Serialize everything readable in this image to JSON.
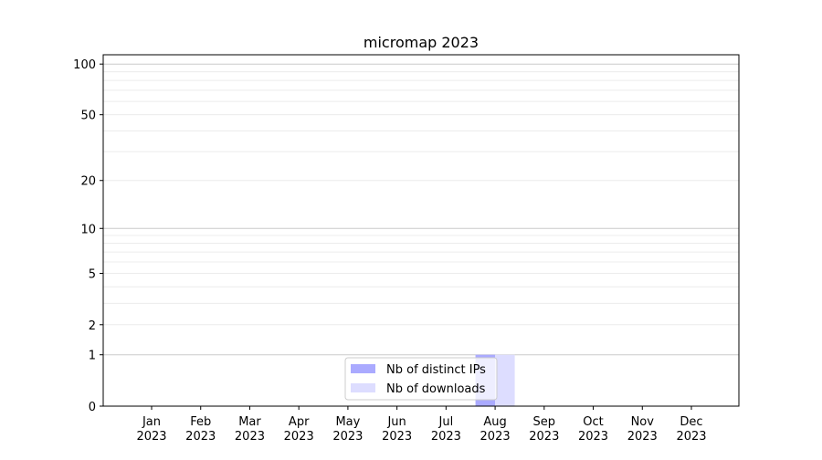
{
  "chart_data": {
    "type": "bar",
    "title": "micromap 2023",
    "xlabel": "",
    "ylabel": "",
    "y_scale": "log(1+y)",
    "ylim": [
      0,
      114
    ],
    "yticks": [
      0,
      1,
      2,
      5,
      10,
      20,
      50,
      100
    ],
    "ytick_labels": [
      "0",
      "1",
      "2",
      "5",
      "10",
      "20",
      "50",
      "100"
    ],
    "grid": {
      "major": [
        1,
        10,
        100
      ],
      "minor": [
        2,
        3,
        4,
        5,
        6,
        7,
        8,
        9,
        20,
        30,
        40,
        50,
        60,
        70,
        80,
        90
      ]
    },
    "categories": [
      "Jan\n2023",
      "Feb\n2023",
      "Mar\n2023",
      "Apr\n2023",
      "May\n2023",
      "Jun\n2023",
      "Jul\n2023",
      "Aug\n2023",
      "Sep\n2023",
      "Oct\n2023",
      "Nov\n2023",
      "Dec\n2023"
    ],
    "category_lines": [
      [
        "Jan",
        "2023"
      ],
      [
        "Feb",
        "2023"
      ],
      [
        "Mar",
        "2023"
      ],
      [
        "Apr",
        "2023"
      ],
      [
        "May",
        "2023"
      ],
      [
        "Jun",
        "2023"
      ],
      [
        "Jul",
        "2023"
      ],
      [
        "Aug",
        "2023"
      ],
      [
        "Sep",
        "2023"
      ],
      [
        "Oct",
        "2023"
      ],
      [
        "Nov",
        "2023"
      ],
      [
        "Dec",
        "2023"
      ]
    ],
    "series": [
      {
        "name": "Nb of distinct IPs",
        "color": "#aaaaff",
        "values": [
          0,
          0,
          0,
          0,
          0,
          0,
          0,
          1,
          0,
          0,
          0,
          0
        ]
      },
      {
        "name": "Nb of downloads",
        "color": "#ddddff",
        "values": [
          0,
          0,
          0,
          0,
          0,
          0,
          0,
          1,
          0,
          0,
          0,
          0
        ]
      }
    ],
    "legend_position": "lower-center"
  }
}
